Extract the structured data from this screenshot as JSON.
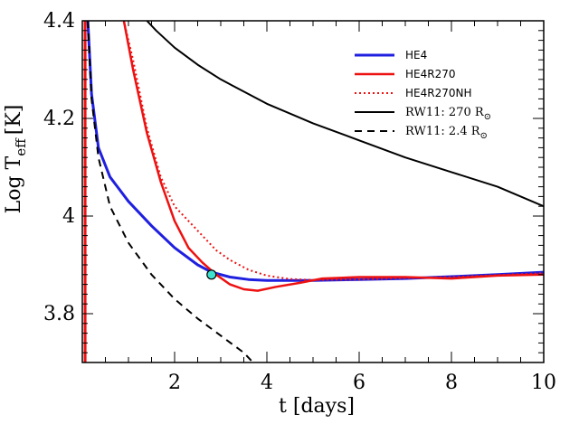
{
  "chart_data": {
    "type": "line",
    "xlabel": "t [days]",
    "ylabel_main": "Log T",
    "ylabel_sub": "eff",
    "ylabel_unit": "[K]",
    "xlim": [
      0,
      10
    ],
    "ylim": [
      3.7,
      4.4
    ],
    "x_ticks": [
      2,
      4,
      6,
      8,
      10
    ],
    "x_tick_labels": [
      "2",
      "4",
      "6",
      "8",
      "10"
    ],
    "y_ticks": [
      3.8,
      4.0,
      4.2,
      4.4
    ],
    "y_tick_labels": [
      "3.8",
      "4",
      "4.2",
      "4.4"
    ],
    "legend_position": "top-right",
    "series": [
      {
        "name": "HE4",
        "color": "#1f1fe0",
        "style": "solid",
        "width": 3,
        "points": [
          [
            0.12,
            4.4
          ],
          [
            0.2,
            4.25
          ],
          [
            0.35,
            4.14
          ],
          [
            0.6,
            4.08
          ],
          [
            1.0,
            4.03
          ],
          [
            1.5,
            3.98
          ],
          [
            2.0,
            3.935
          ],
          [
            2.5,
            3.9
          ],
          [
            2.8,
            3.885
          ],
          [
            3.2,
            3.875
          ],
          [
            3.6,
            3.87
          ],
          [
            4.0,
            3.868
          ],
          [
            5.0,
            3.868
          ],
          [
            6.0,
            3.87
          ],
          [
            7.0,
            3.872
          ],
          [
            8.0,
            3.876
          ],
          [
            9.0,
            3.88
          ],
          [
            10.0,
            3.885
          ]
        ]
      },
      {
        "name": "HE4R270",
        "color": "#ee1111",
        "style": "solid",
        "width": 2.5,
        "points": [
          [
            0.9,
            4.4
          ],
          [
            1.1,
            4.3
          ],
          [
            1.4,
            4.17
          ],
          [
            1.7,
            4.07
          ],
          [
            2.0,
            3.99
          ],
          [
            2.3,
            3.935
          ],
          [
            2.6,
            3.905
          ],
          [
            2.9,
            3.88
          ],
          [
            3.2,
            3.86
          ],
          [
            3.5,
            3.85
          ],
          [
            3.8,
            3.847
          ],
          [
            4.2,
            3.855
          ],
          [
            4.7,
            3.863
          ],
          [
            5.2,
            3.872
          ],
          [
            6.0,
            3.875
          ],
          [
            7.0,
            3.875
          ],
          [
            8.0,
            3.872
          ],
          [
            9.0,
            3.878
          ],
          [
            10.0,
            3.88
          ]
        ]
      },
      {
        "name": "HE4R270NH",
        "color": "#ee1111",
        "style": "dotted",
        "width": 2,
        "points": [
          [
            0.9,
            4.4
          ],
          [
            1.1,
            4.32
          ],
          [
            1.4,
            4.18
          ],
          [
            1.7,
            4.08
          ],
          [
            2.0,
            4.02
          ],
          [
            2.3,
            3.99
          ],
          [
            2.6,
            3.96
          ],
          [
            2.9,
            3.93
          ],
          [
            3.2,
            3.91
          ],
          [
            3.6,
            3.89
          ],
          [
            4.0,
            3.878
          ],
          [
            4.5,
            3.871
          ],
          [
            5.0,
            3.869
          ],
          [
            6.0,
            3.87
          ],
          [
            7.0,
            3.873
          ],
          [
            8.0,
            3.875
          ],
          [
            9.0,
            3.879
          ],
          [
            10.0,
            3.883
          ]
        ]
      },
      {
        "name": "RW11: 270 R",
        "name_sub": "⊙",
        "color": "#000000",
        "style": "solid",
        "width": 2,
        "points": [
          [
            1.4,
            4.4
          ],
          [
            1.6,
            4.38
          ],
          [
            2.0,
            4.345
          ],
          [
            2.5,
            4.31
          ],
          [
            3.0,
            4.28
          ],
          [
            4.0,
            4.23
          ],
          [
            5.0,
            4.19
          ],
          [
            6.0,
            4.155
          ],
          [
            7.0,
            4.12
          ],
          [
            8.0,
            4.09
          ],
          [
            9.0,
            4.06
          ],
          [
            10.0,
            4.02
          ]
        ]
      },
      {
        "name": "RW11: 2.4  R",
        "name_sub": "⊙",
        "color": "#000000",
        "style": "dashed",
        "width": 2,
        "points": [
          [
            0.12,
            4.4
          ],
          [
            0.2,
            4.24
          ],
          [
            0.35,
            4.12
          ],
          [
            0.6,
            4.02
          ],
          [
            1.0,
            3.945
          ],
          [
            1.5,
            3.88
          ],
          [
            2.0,
            3.83
          ],
          [
            2.5,
            3.79
          ],
          [
            3.0,
            3.755
          ],
          [
            3.5,
            3.72
          ],
          [
            3.7,
            3.7
          ]
        ]
      }
    ],
    "initial_spike": {
      "color": "#ee1111",
      "points": [
        [
          0.06,
          3.7
        ],
        [
          0.06,
          4.4
        ]
      ]
    },
    "marker": {
      "x": 2.8,
      "y": 3.88,
      "color": "#40e0d0"
    }
  }
}
